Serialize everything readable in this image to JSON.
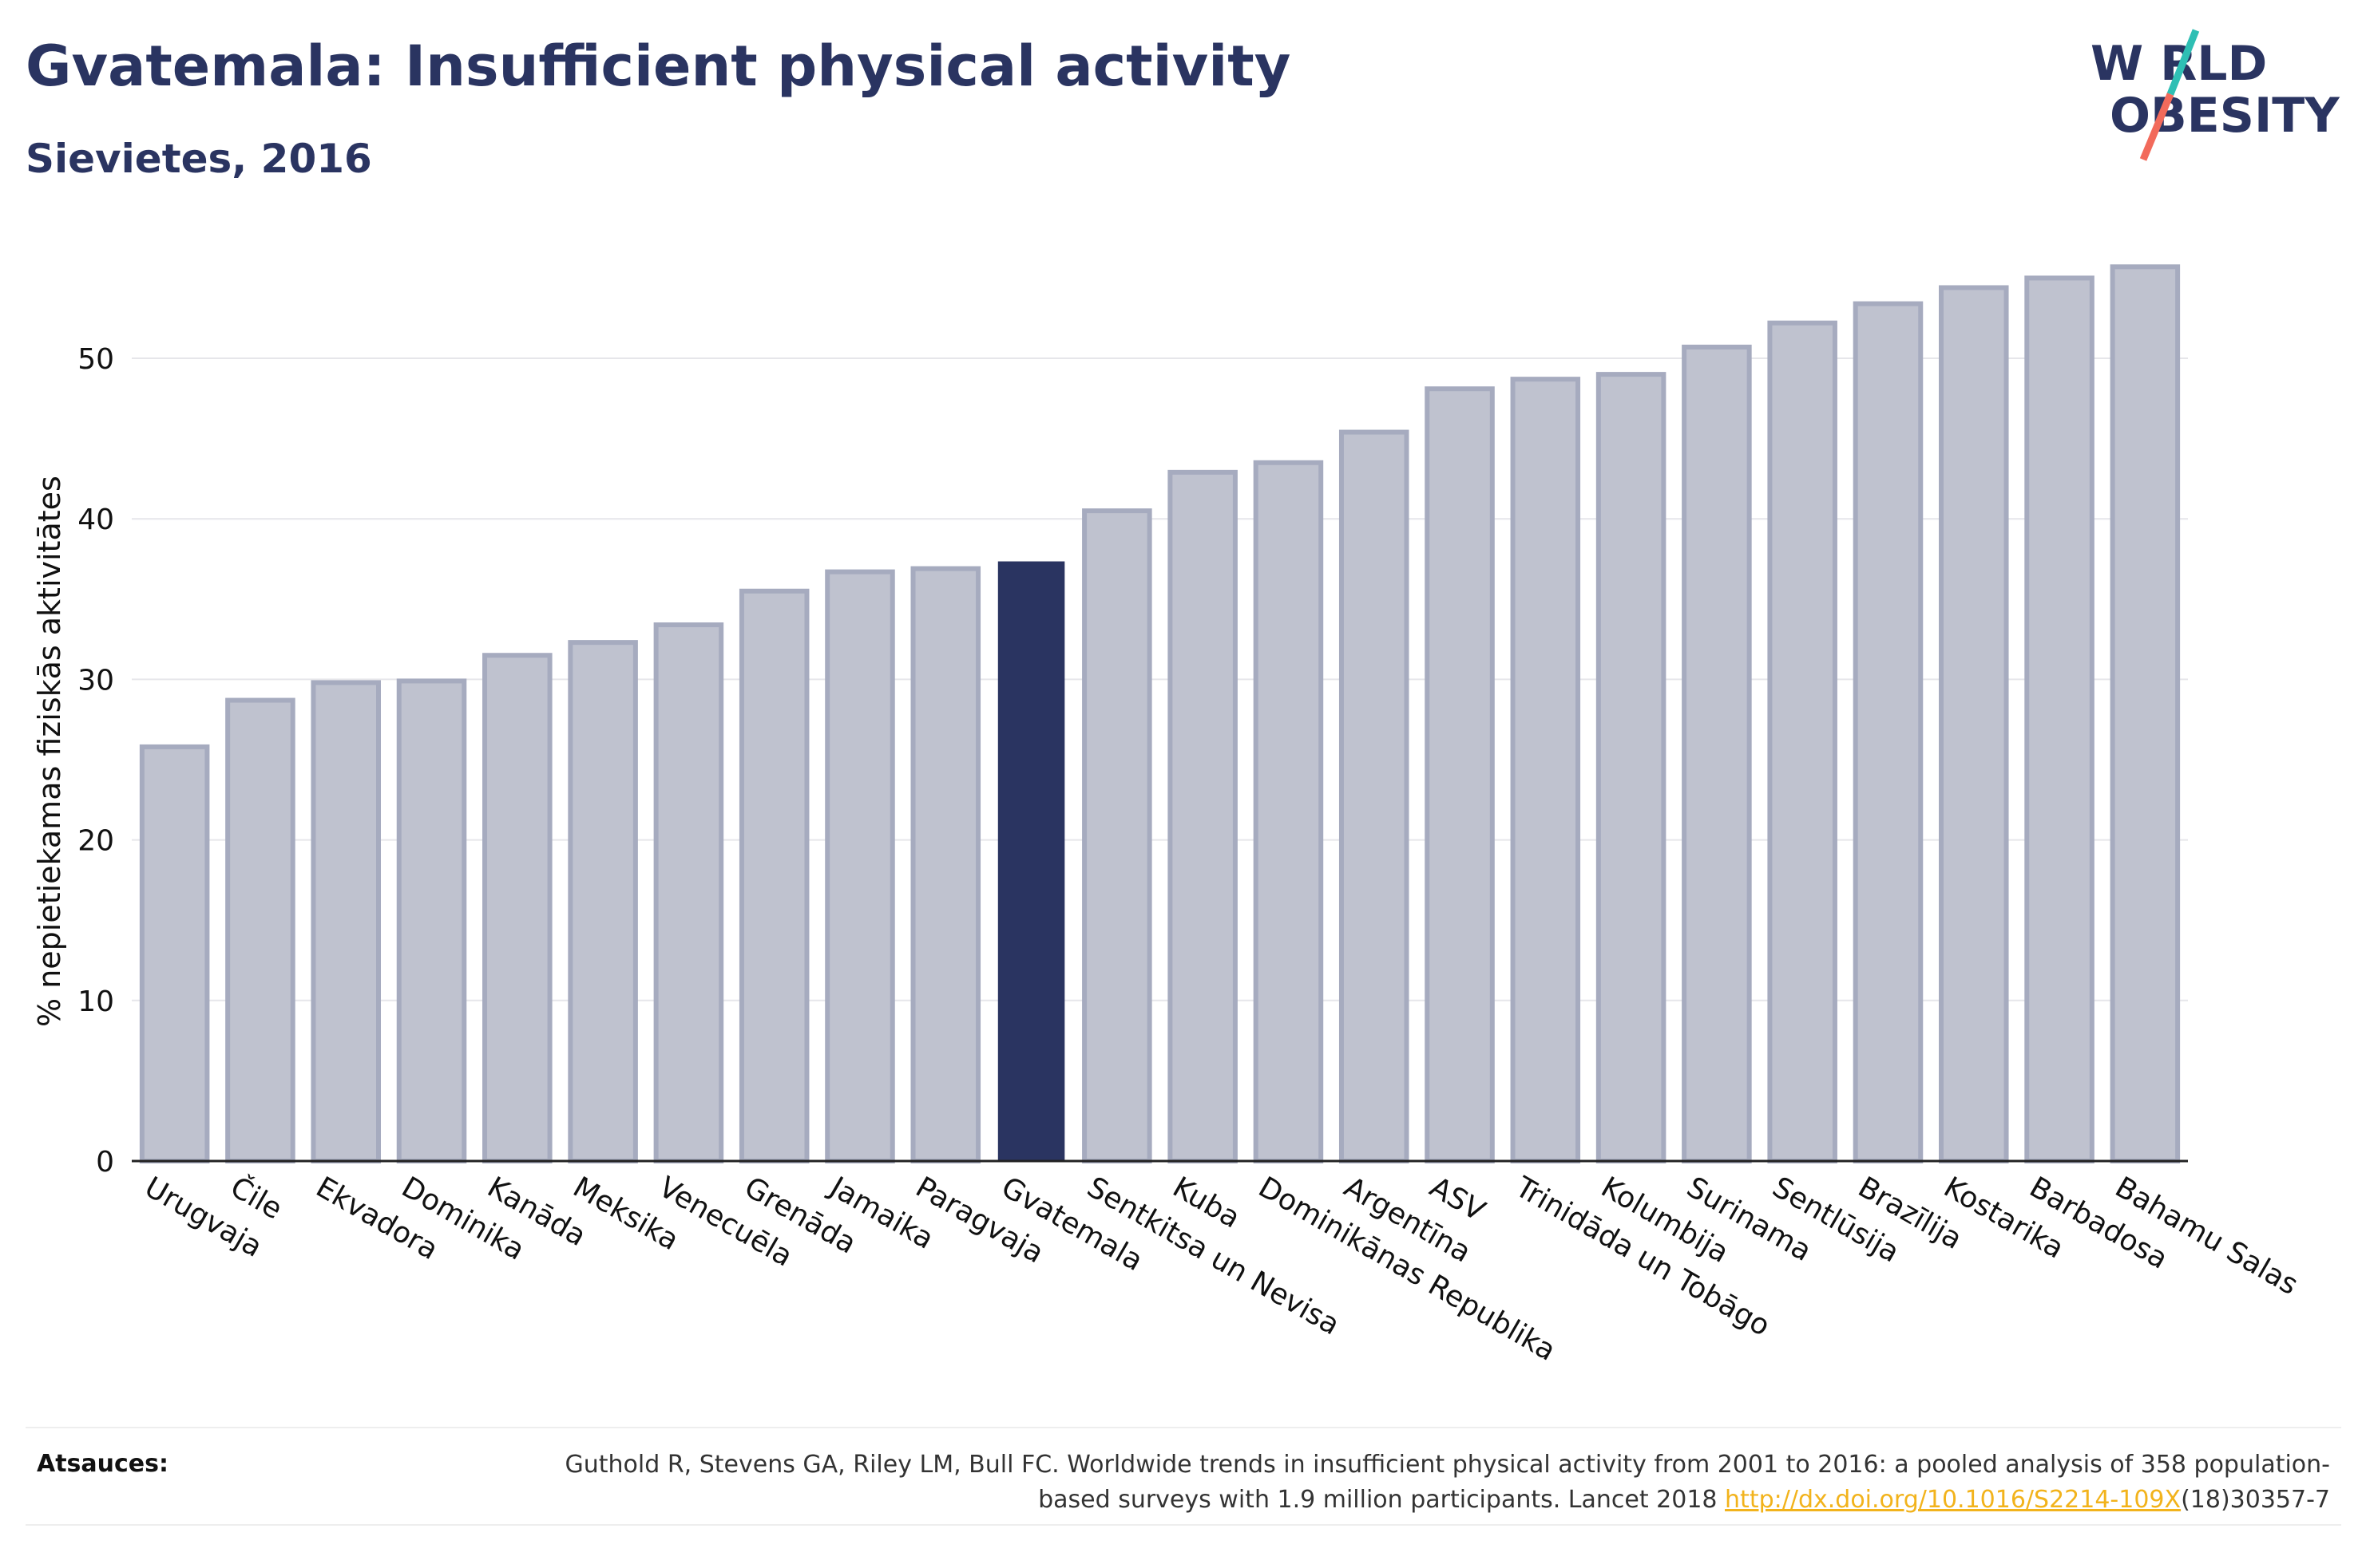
{
  "header": {
    "title": "Gvatemala: Insufficient physical activity",
    "subtitle": "Sievietes, 2016"
  },
  "logo": {
    "line1": "W RLD",
    "line2": "OBESITY",
    "text_color": "#2a3461",
    "slash_colors": [
      "#2fbfb4",
      "#f26a5b"
    ]
  },
  "chart_data": {
    "type": "bar",
    "title": "Gvatemala: Insufficient physical activity",
    "subtitle": "Sievietes, 2016",
    "xlabel": "",
    "ylabel": "% nepietiekamas fiziskās aktivitātes",
    "ylim": [
      0,
      57
    ],
    "yticks": [
      0,
      10,
      20,
      30,
      40,
      50
    ],
    "grid": true,
    "legend": "none",
    "highlight": "Gvatemala",
    "colors": {
      "bar": "#bfc2cf",
      "bar_edge": "#a6abbf",
      "highlight": "#2a3461"
    },
    "categories": [
      "Urugvaja",
      "Čile",
      "Ekvadora",
      "Dominika",
      "Kanāda",
      "Meksika",
      "Venecuēla",
      "Grenāda",
      "Jamaika",
      "Paragvaja",
      "Gvatemala",
      "Sentkitsa un Nevisa",
      "Kuba",
      "Dominikānas Republika",
      "Argentīna",
      "ASV",
      "Trinidāda un Tobāgo",
      "Kolumbija",
      "Surinama",
      "Sentlūsija",
      "Brazīlija",
      "Kostarika",
      "Barbadosa",
      "Bahamu Salas"
    ],
    "values": [
      25.8,
      28.7,
      29.8,
      29.9,
      31.5,
      32.3,
      33.4,
      35.5,
      36.7,
      36.9,
      37.3,
      40.5,
      42.9,
      43.5,
      45.4,
      48.1,
      48.7,
      49.0,
      50.7,
      52.2,
      53.4,
      54.4,
      55.0,
      55.7
    ]
  },
  "source": {
    "label": "Atsauces:",
    "text_before": "Guthold R, Stevens GA, Riley LM, Bull FC. Worldwide trends in insufficient physical activity from 2001 to 2016: a pooled analysis of 358 population-based surveys with 1.9 million participants. Lancet 2018 ",
    "link": "http://dx.doi.org/10.1016/S2214-109X",
    "text_after": "(18)30357-7"
  }
}
